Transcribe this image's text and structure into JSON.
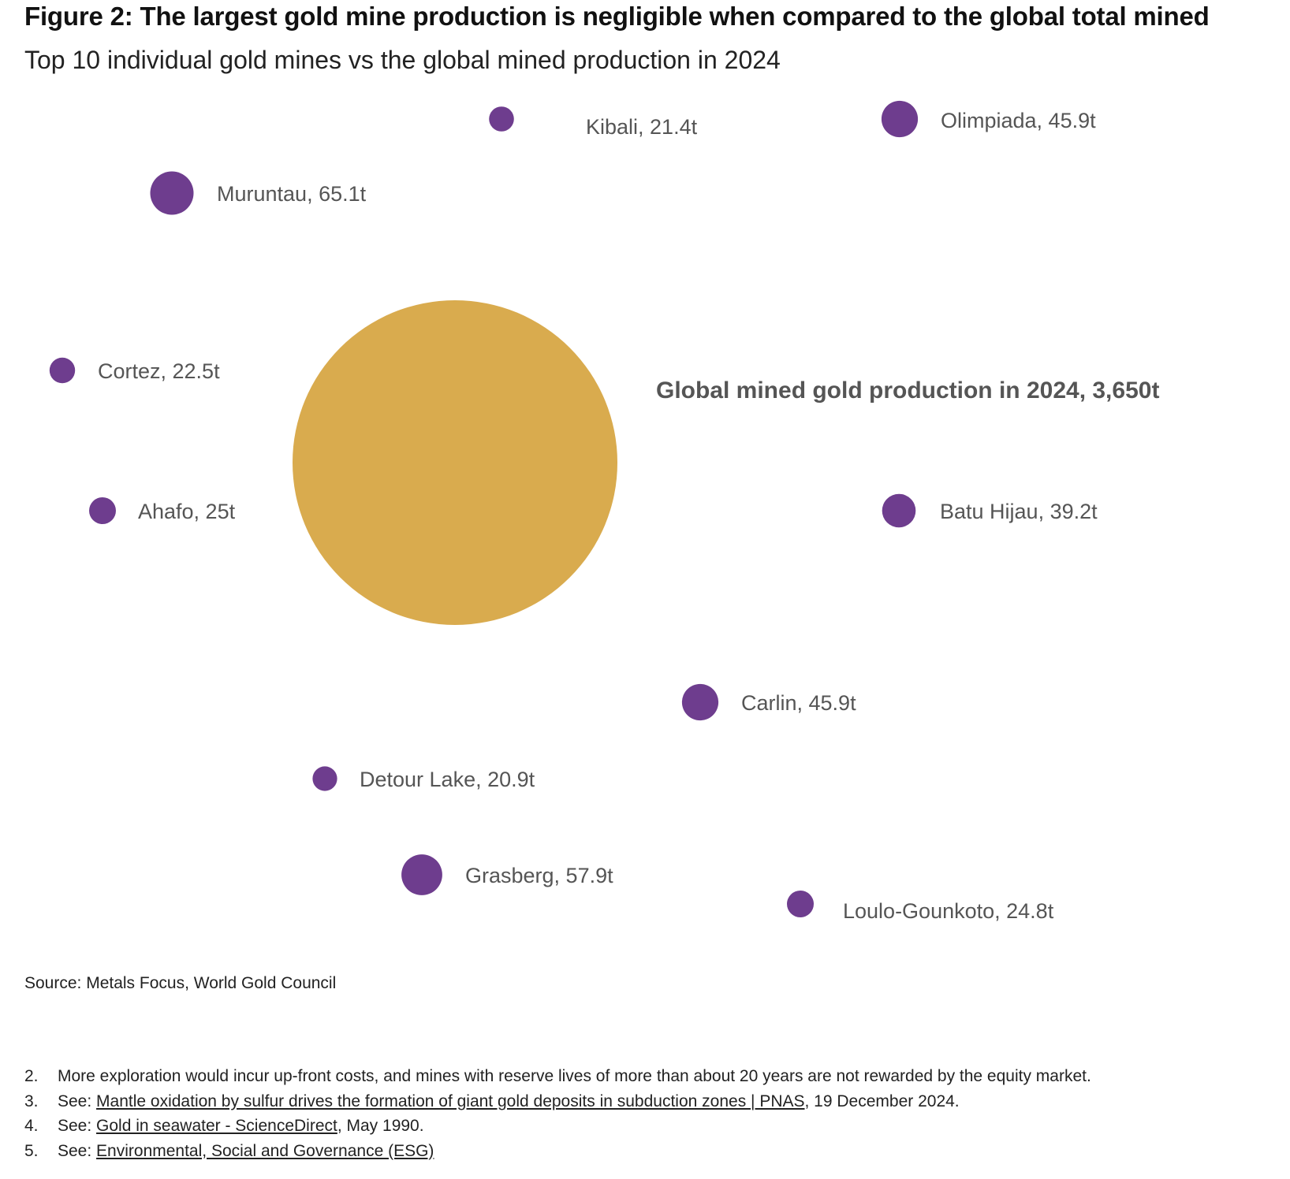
{
  "figure": {
    "title": "Figure 2: The largest gold mine production is negligible when compared to the global total mined",
    "subtitle": "Top 10 individual gold mines vs the global mined production in 2024"
  },
  "chart_data": {
    "type": "bubble",
    "unit": "t",
    "global": {
      "label": "Global mined gold production in 2024, 3,650t",
      "value": 3650,
      "color": "#d9ab4e"
    },
    "mines": [
      {
        "name": "Kibali",
        "value": 21.4,
        "label": "Kibali, 21.4t"
      },
      {
        "name": "Olimpiada",
        "value": 45.9,
        "label": "Olimpiada, 45.9t"
      },
      {
        "name": "Muruntau",
        "value": 65.1,
        "label": "Muruntau, 65.1t"
      },
      {
        "name": "Cortez",
        "value": 22.5,
        "label": "Cortez, 22.5t"
      },
      {
        "name": "Ahafo",
        "value": 25,
        "label": "Ahafo, 25t"
      },
      {
        "name": "Batu Hijau",
        "value": 39.2,
        "label": "Batu Hijau, 39.2t"
      },
      {
        "name": "Carlin",
        "value": 45.9,
        "label": "Carlin, 45.9t"
      },
      {
        "name": "Detour Lake",
        "value": 20.9,
        "label": "Detour Lake, 20.9t"
      },
      {
        "name": "Grasberg",
        "value": 57.9,
        "label": "Grasberg, 57.9t"
      },
      {
        "name": "Loulo-Gounkoto",
        "value": 24.8,
        "label": "Loulo-Gounkoto, 24.8t"
      }
    ],
    "mine_color": "#6e3d8e"
  },
  "source": "Source: Metals Focus, World Gold Council",
  "footnotes": [
    {
      "num": "2.",
      "pre": "More exploration would incur up-front costs, and mines with reserve lives of more than about 20 years are not rewarded by the equity market.",
      "link": "",
      "post": ""
    },
    {
      "num": "3.",
      "pre": "See: ",
      "link": "Mantle oxidation by sulfur drives the formation of giant gold deposits in subduction zones | PNAS",
      "post": ", 19 December 2024."
    },
    {
      "num": "4.",
      "pre": "See: ",
      "link": "Gold in seawater - ScienceDirect",
      "post": ", May 1990."
    },
    {
      "num": "5.",
      "pre": "See: ",
      "link": "Environmental, Social and Governance (ESG)",
      "post": ""
    }
  ]
}
